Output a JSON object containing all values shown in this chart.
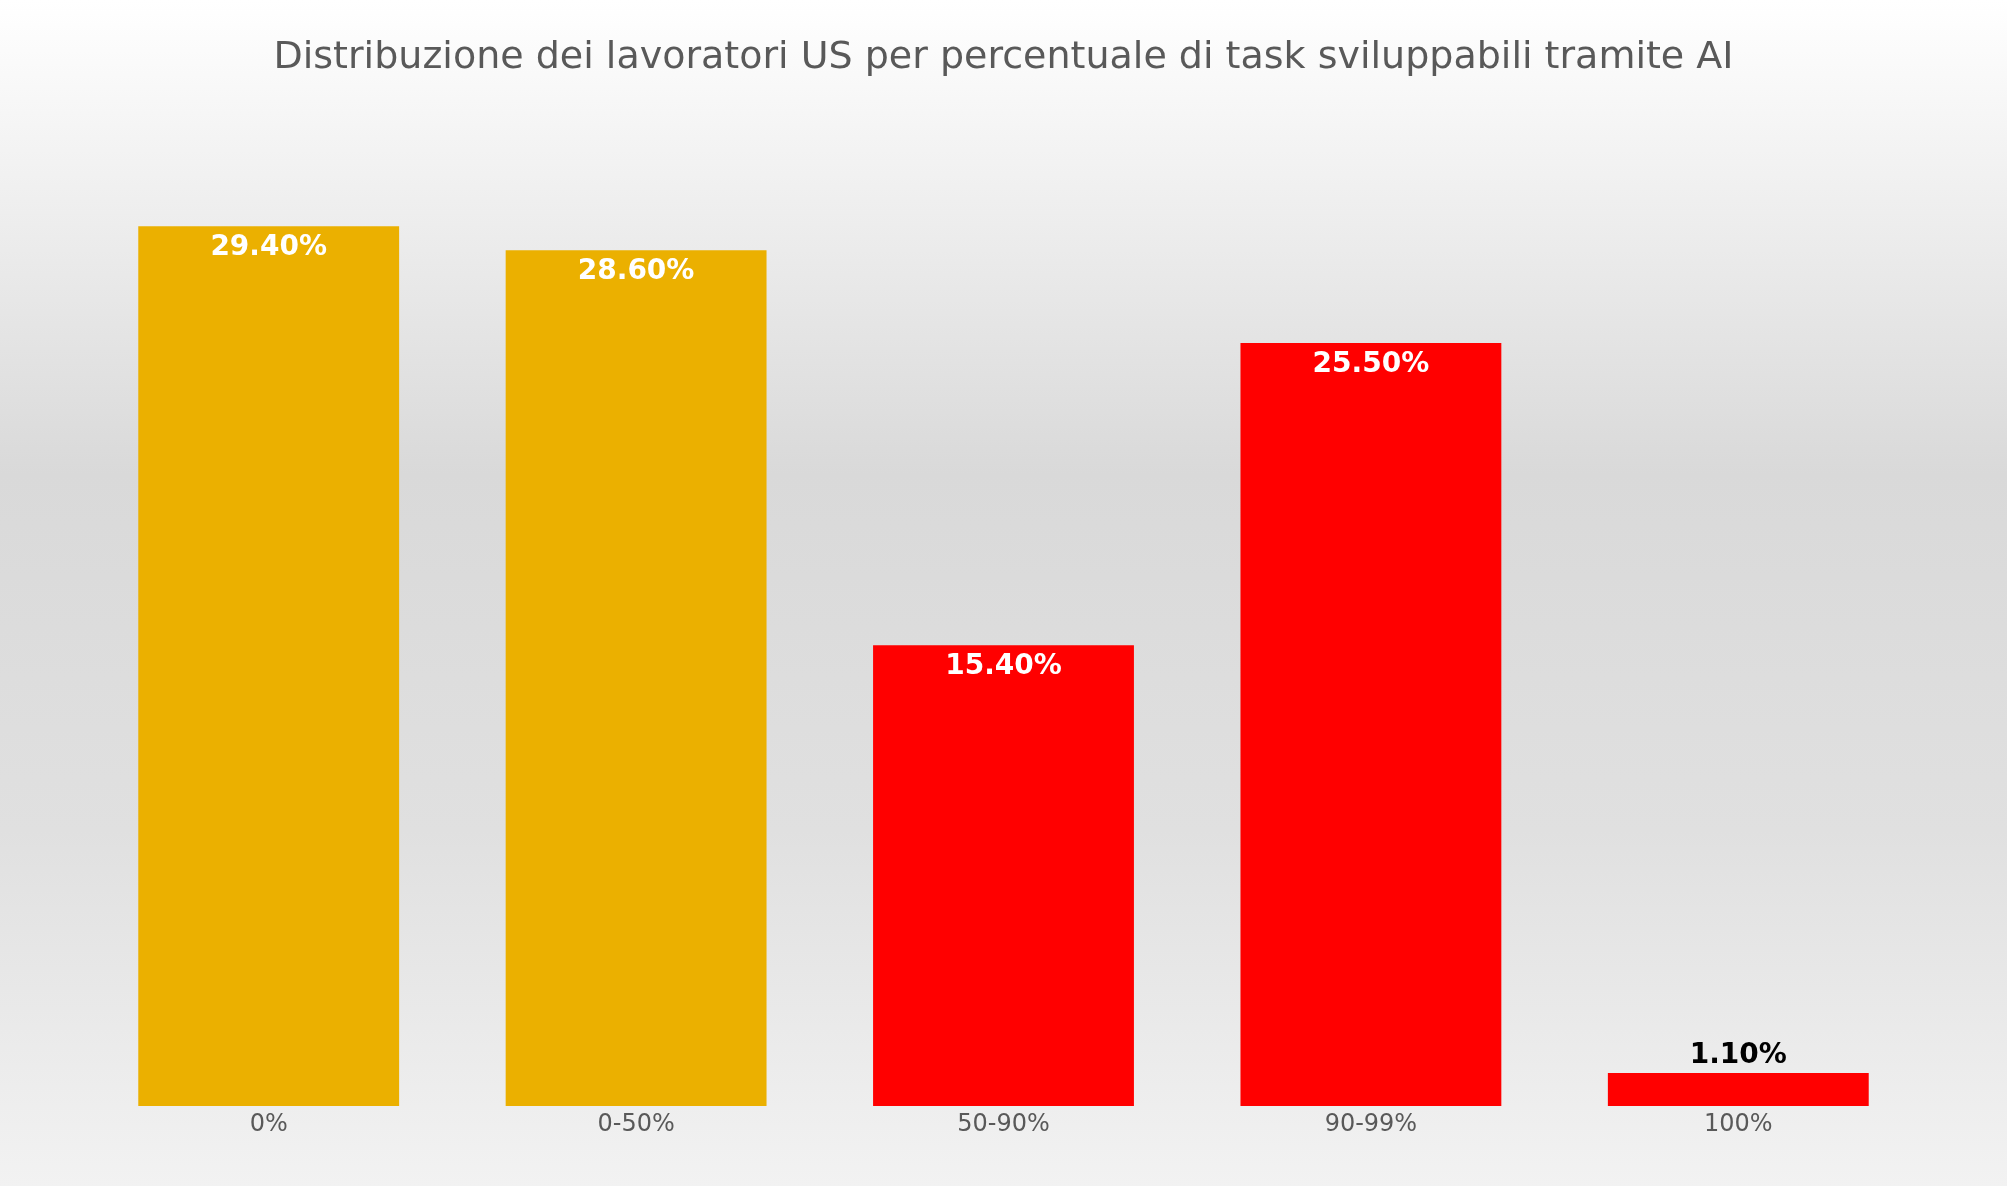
{
  "chart_data": {
    "type": "bar",
    "title": "Distribuzione dei lavoratori US per percentuale di task sviluppabili tramite AI",
    "categories": [
      "0%",
      "0-50%",
      "50-90%",
      "90-99%",
      "100%"
    ],
    "values": [
      29.4,
      28.6,
      15.4,
      25.5,
      1.1
    ],
    "value_labels": [
      "29.40%",
      "28.60%",
      "15.40%",
      "25.50%",
      "1.10%"
    ],
    "colors": [
      "#ebb000",
      "#ebb000",
      "#ff0000",
      "#ff0000",
      "#ff0000"
    ],
    "grid": false,
    "legend": false
  }
}
